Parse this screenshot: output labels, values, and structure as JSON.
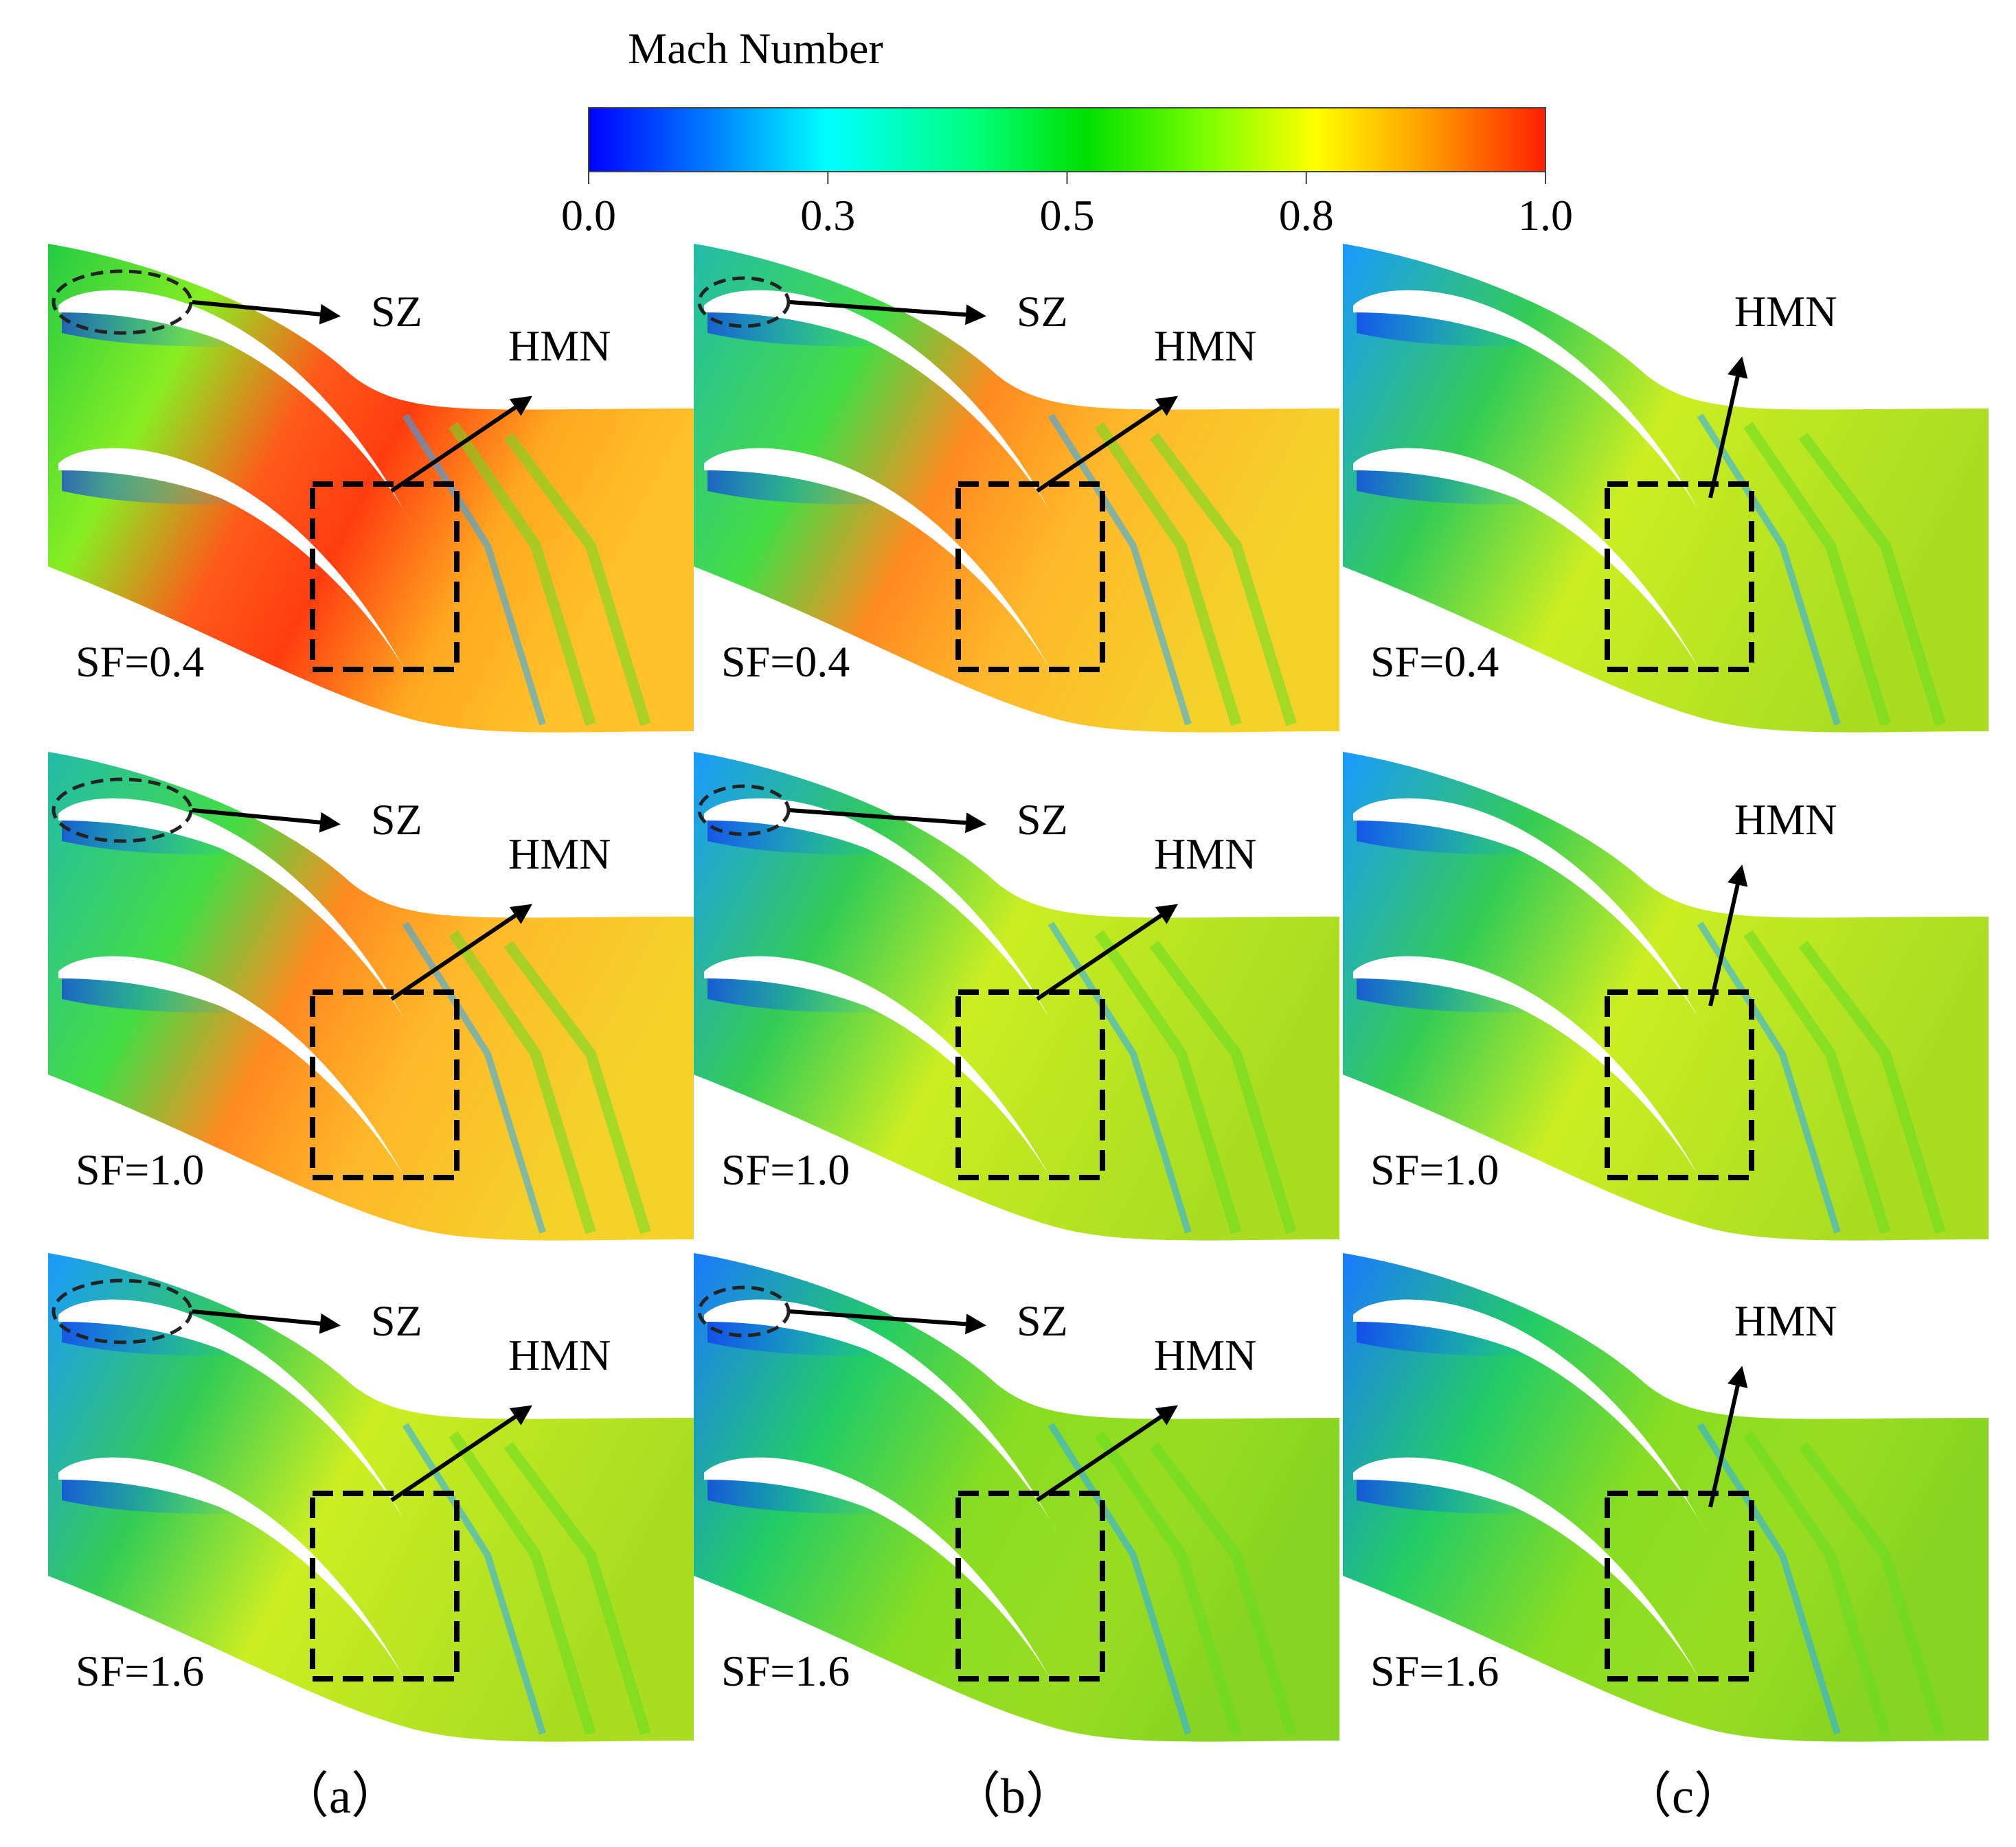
{
  "colorbar": {
    "title": "Mach Number",
    "ticks": [
      "0.0",
      "0.3",
      "0.5",
      "0.8",
      "1.0"
    ],
    "colors": [
      "#0000ff",
      "#0080ff",
      "#00ffff",
      "#00ff80",
      "#00e000",
      "#80ff00",
      "#ffff00",
      "#ff9900",
      "#ff2000"
    ]
  },
  "panels": [
    {
      "column": "a",
      "sf_label": "SF=0.4",
      "level": "high",
      "has_sz": true,
      "sz_label": "SZ",
      "hmn_label": "HMN"
    },
    {
      "column": "b",
      "sf_label": "SF=0.4",
      "level": "midhigh",
      "has_sz": true,
      "sz_label": "SZ",
      "hmn_label": "HMN"
    },
    {
      "column": "c",
      "sf_label": "SF=0.4",
      "level": "mid",
      "has_sz": false,
      "sz_label": "",
      "hmn_label": "HMN"
    },
    {
      "column": "a",
      "sf_label": "SF=1.0",
      "level": "midhigh",
      "has_sz": true,
      "sz_label": "SZ",
      "hmn_label": "HMN"
    },
    {
      "column": "b",
      "sf_label": "SF=1.0",
      "level": "mid",
      "has_sz": true,
      "sz_label": "SZ",
      "hmn_label": "HMN"
    },
    {
      "column": "c",
      "sf_label": "SF=1.0",
      "level": "mid",
      "has_sz": false,
      "sz_label": "",
      "hmn_label": "HMN"
    },
    {
      "column": "a",
      "sf_label": "SF=1.6",
      "level": "mid",
      "has_sz": true,
      "sz_label": "SZ",
      "hmn_label": "HMN"
    },
    {
      "column": "b",
      "sf_label": "SF=1.6",
      "level": "low",
      "has_sz": true,
      "sz_label": "SZ",
      "hmn_label": "HMN"
    },
    {
      "column": "c",
      "sf_label": "SF=1.6",
      "level": "low",
      "has_sz": false,
      "sz_label": "",
      "hmn_label": "HMN"
    }
  ],
  "column_labels": [
    "（a）",
    "（b）",
    "（c）"
  ]
}
